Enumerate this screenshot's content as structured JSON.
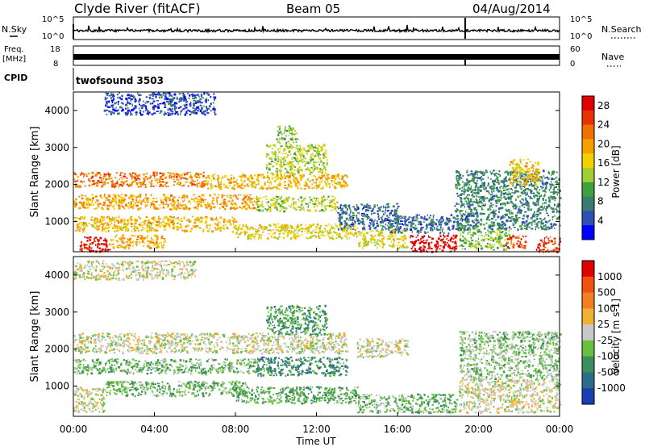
{
  "header": {
    "station": "Clyde River (fitACF)",
    "beam": "Beam 05",
    "date": "04/Aug/2014"
  },
  "top_panels": {
    "nsky_label": "N.Sky",
    "nsearch_label": "N.Search",
    "noise_ticks_left": [
      "10^5",
      "10^0"
    ],
    "noise_ticks_right": [
      "10^5",
      "10^0"
    ],
    "freq_label_1": "Freq.",
    "freq_label_2": "[MHz]",
    "freq_ticks_left": [
      "18",
      "8"
    ],
    "nave_label": "Nave",
    "nave_ticks_right": [
      "60",
      "0"
    ],
    "cpid_label": "CPID",
    "cpid_value": "twofsound 3503"
  },
  "chart_data": [
    {
      "type": "heatmap",
      "name": "power",
      "ylabel": "Slant Range [km]",
      "xlabel": "Time UT",
      "x_ticks": [
        "00:00",
        "04:00",
        "08:00",
        "12:00",
        "16:00",
        "20:00",
        "00:00"
      ],
      "xlim_hours": [
        0,
        24
      ],
      "y_ticks": [
        "1000",
        "2000",
        "3000",
        "4000"
      ],
      "ylim_km": [
        180,
        4500
      ],
      "colorbar": {
        "label": "Power [dB]",
        "ticks": [
          "4",
          "8",
          "12",
          "16",
          "20",
          "24",
          "28"
        ],
        "range": [
          0,
          30
        ],
        "colors": [
          "#0000ff",
          "#2f4fb4",
          "#3a7c6e",
          "#3fa040",
          "#9fcf30",
          "#f3d000",
          "#f6a000",
          "#f07000",
          "#e83000",
          "#e00000"
        ]
      },
      "bands": [
        {
          "t0": 0.0,
          "t1": 6.5,
          "r0": 1950,
          "r1": 2350,
          "level": 22
        },
        {
          "t0": 6.5,
          "t1": 13.5,
          "r0": 1900,
          "r1": 2300,
          "level": 18
        },
        {
          "t0": 0.0,
          "t1": 9.0,
          "r0": 1350,
          "r1": 1750,
          "level": 20
        },
        {
          "t0": 9.0,
          "t1": 13.0,
          "r0": 1300,
          "r1": 1700,
          "level": 14
        },
        {
          "t0": 0.0,
          "t1": 8.0,
          "r0": 750,
          "r1": 1150,
          "level": 18
        },
        {
          "t0": 8.0,
          "t1": 14.0,
          "r0": 550,
          "r1": 950,
          "level": 16
        },
        {
          "t0": 0.3,
          "t1": 1.8,
          "r0": 200,
          "r1": 600,
          "level": 28
        },
        {
          "t0": 1.8,
          "t1": 4.5,
          "r0": 300,
          "r1": 650,
          "level": 20
        },
        {
          "t0": 14.0,
          "t1": 16.5,
          "r0": 300,
          "r1": 800,
          "level": 16
        },
        {
          "t0": 16.6,
          "t1": 18.9,
          "r0": 200,
          "r1": 650,
          "level": 30
        },
        {
          "t0": 19.0,
          "t1": 21.5,
          "r0": 250,
          "r1": 800,
          "level": 12
        },
        {
          "t0": 21.3,
          "t1": 22.3,
          "r0": 300,
          "r1": 650,
          "level": 26
        },
        {
          "t0": 22.8,
          "t1": 24.0,
          "r0": 200,
          "r1": 600,
          "level": 26
        },
        {
          "t0": 18.8,
          "t1": 24.0,
          "r0": 800,
          "r1": 2400,
          "level": 8
        },
        {
          "t0": 21.5,
          "t1": 23.0,
          "r0": 2000,
          "r1": 2700,
          "level": 18
        },
        {
          "t0": 9.5,
          "t1": 12.5,
          "r0": 2300,
          "r1": 3100,
          "level": 14
        },
        {
          "t0": 10.0,
          "t1": 11.0,
          "r0": 3100,
          "r1": 3600,
          "level": 12
        },
        {
          "t0": 1.5,
          "t1": 7.0,
          "r0": 3900,
          "r1": 4500,
          "level": 4
        },
        {
          "t0": 13.0,
          "t1": 16.0,
          "r0": 800,
          "r1": 1500,
          "level": 6
        },
        {
          "t0": 15.5,
          "t1": 19.5,
          "r0": 700,
          "r1": 1200,
          "level": 6
        }
      ]
    },
    {
      "type": "heatmap",
      "name": "velocity",
      "ylabel": "Slant Range [km]",
      "xlabel": "Time UT",
      "x_ticks": [
        "00:00",
        "04:00",
        "08:00",
        "12:00",
        "16:00",
        "20:00",
        "00:00"
      ],
      "xlim_hours": [
        0,
        24
      ],
      "y_ticks": [
        "1000",
        "2000",
        "3000",
        "4000"
      ],
      "ylim_km": [
        180,
        4500
      ],
      "colorbar": {
        "label": "Velocity [m s-1]",
        "ticks": [
          "1000",
          "500",
          "100",
          "25",
          "-25",
          "-100",
          "-500",
          "-1000"
        ],
        "range": [
          -1200,
          1200
        ],
        "colors": [
          "#1a3fb0",
          "#2c6e8a",
          "#3c8f5a",
          "#68c040",
          "#c8c8c8",
          "#f0b030",
          "#f08020",
          "#f05010",
          "#e00000"
        ]
      },
      "bands": [
        {
          "t0": 0.0,
          "t1": 13.5,
          "r0": 1900,
          "r1": 2450,
          "level": 0
        },
        {
          "t0": 0.0,
          "t1": 9.0,
          "r0": 1350,
          "r1": 1750,
          "level": -300
        },
        {
          "t0": 9.0,
          "t1": 13.5,
          "r0": 1300,
          "r1": 1800,
          "level": -600
        },
        {
          "t0": 1.5,
          "t1": 8.5,
          "r0": 750,
          "r1": 1150,
          "level": -300
        },
        {
          "t0": 0.0,
          "t1": 1.5,
          "r0": 300,
          "r1": 1000,
          "level": 0
        },
        {
          "t0": 8.0,
          "t1": 14.0,
          "r0": 550,
          "r1": 1000,
          "level": -400
        },
        {
          "t0": 14.0,
          "t1": 18.9,
          "r0": 300,
          "r1": 800,
          "level": -300
        },
        {
          "t0": 19.0,
          "t1": 24.0,
          "r0": 300,
          "r1": 1200,
          "level": 0
        },
        {
          "t0": 19.0,
          "t1": 24.0,
          "r0": 1200,
          "r1": 2500,
          "level": -200
        },
        {
          "t0": 9.5,
          "t1": 12.5,
          "r0": 2400,
          "r1": 3200,
          "level": -500
        },
        {
          "t0": 0.0,
          "t1": 6.0,
          "r0": 3900,
          "r1": 4400,
          "level": 0
        },
        {
          "t0": 14.0,
          "t1": 16.5,
          "r0": 1800,
          "r1": 2300,
          "level": 0
        }
      ]
    }
  ]
}
